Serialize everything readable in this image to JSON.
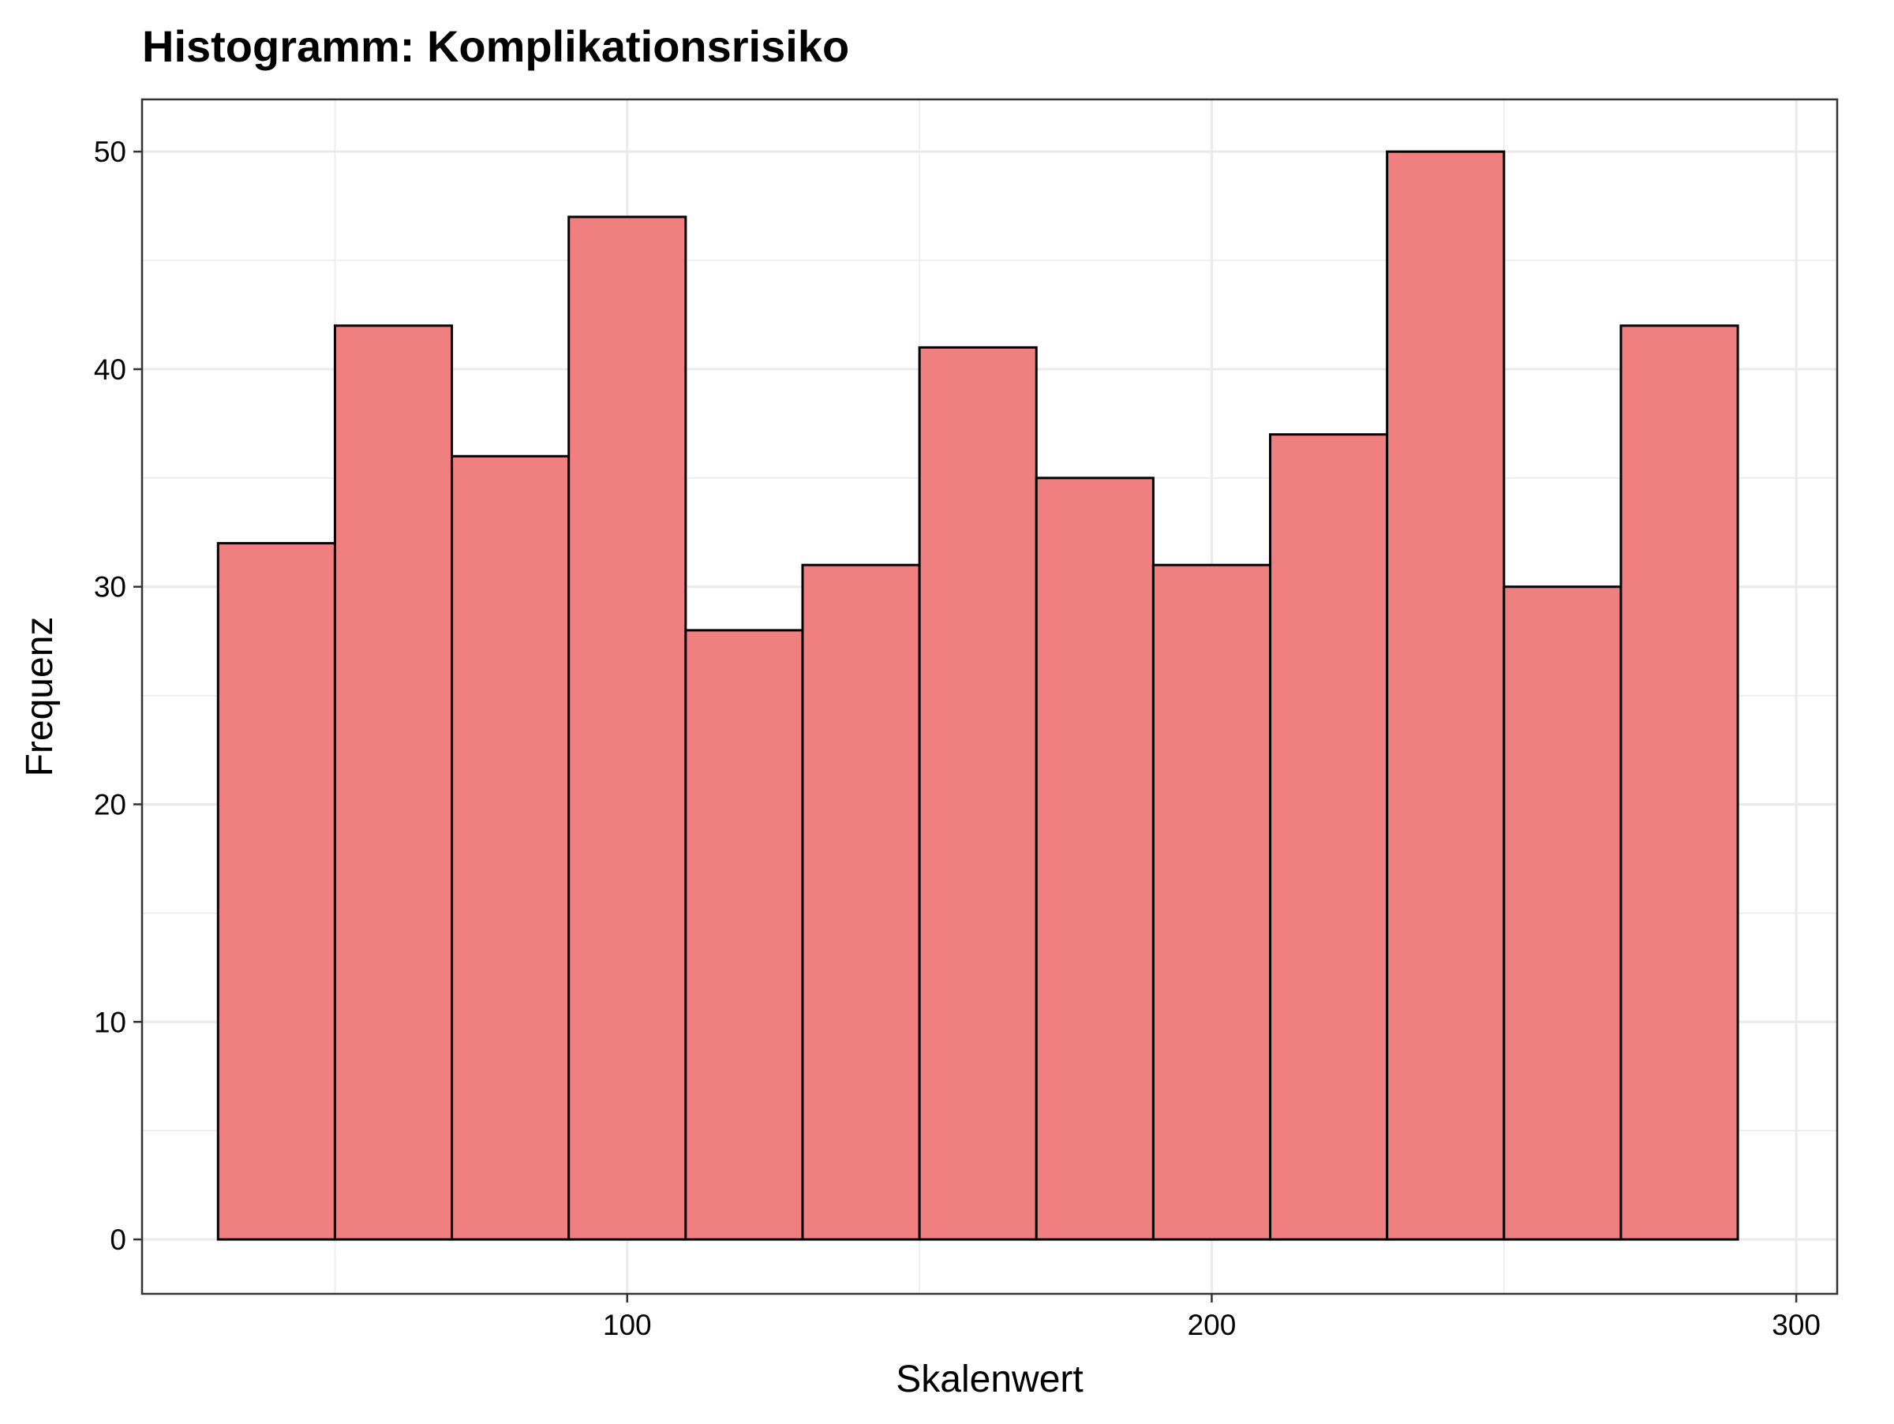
{
  "chart_data": {
    "type": "bar",
    "title": "Histogramm: Komplikationsrisiko",
    "xlabel": "Skalenwert",
    "ylabel": "Frequenz",
    "bin_edges": [
      30,
      50,
      70,
      90,
      110,
      130,
      150,
      170,
      190,
      210,
      230,
      250,
      270,
      290
    ],
    "values": [
      32,
      42,
      36,
      47,
      28,
      31,
      41,
      35,
      31,
      37,
      50,
      30,
      42
    ],
    "xlim": [
      17,
      307
    ],
    "ylim": [
      -2.5,
      52.4
    ],
    "x_ticks": [
      100,
      200,
      300
    ],
    "y_ticks": [
      0,
      10,
      20,
      30,
      40,
      50
    ],
    "x_tick_labels": [
      "100",
      "200",
      "300"
    ],
    "y_tick_labels": [
      "0",
      "10",
      "20",
      "30",
      "40",
      "50"
    ],
    "grid": true,
    "colors": {
      "bar_fill": "#F08080",
      "bar_stroke": "#000000",
      "grid": "#EBEBEB",
      "panel_border": "#333333"
    }
  }
}
